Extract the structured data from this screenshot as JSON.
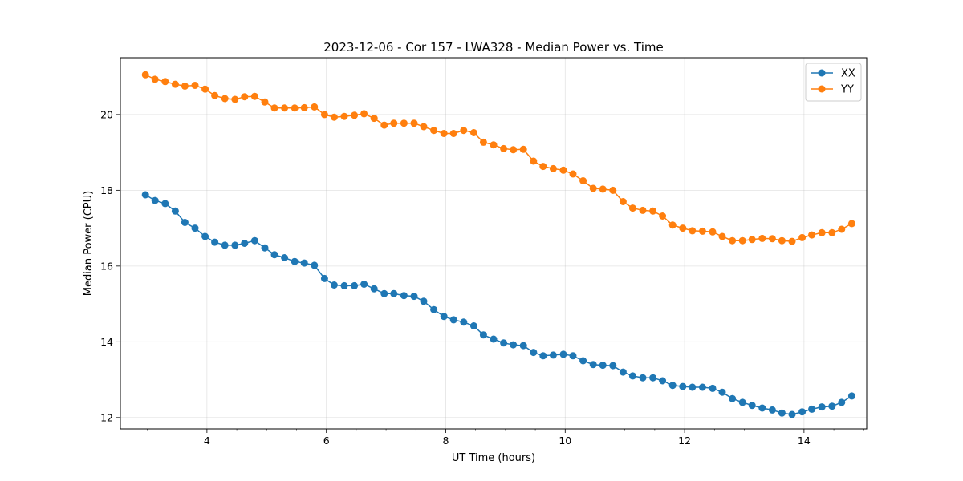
{
  "chart_data": {
    "type": "line",
    "title": "2023-12-06 - Cor 157 - LWA328 - Median Power vs. Time",
    "xlabel": "UT Time (hours)",
    "ylabel": "Median Power (CPU)",
    "xlim": [
      2.55,
      15.05
    ],
    "ylim": [
      11.7,
      21.5
    ],
    "xticks": [
      4,
      6,
      8,
      10,
      12,
      14
    ],
    "yticks": [
      12,
      14,
      16,
      18,
      20
    ],
    "grid": true,
    "legend_position": "top-right",
    "x": [
      2.97,
      3.13,
      3.3,
      3.47,
      3.63,
      3.8,
      3.97,
      4.13,
      4.3,
      4.47,
      4.63,
      4.8,
      4.97,
      5.13,
      5.3,
      5.47,
      5.63,
      5.8,
      5.97,
      6.13,
      6.3,
      6.47,
      6.63,
      6.8,
      6.97,
      7.13,
      7.3,
      7.47,
      7.63,
      7.8,
      7.97,
      8.13,
      8.3,
      8.47,
      8.63,
      8.8,
      8.97,
      9.13,
      9.3,
      9.47,
      9.63,
      9.8,
      9.97,
      10.13,
      10.3,
      10.47,
      10.63,
      10.8,
      10.97,
      11.13,
      11.3,
      11.47,
      11.63,
      11.8,
      11.97,
      12.13,
      12.3,
      12.47,
      12.63,
      12.8,
      12.97,
      13.13,
      13.3,
      13.47,
      13.63,
      13.8,
      13.97,
      14.13,
      14.3,
      14.47,
      14.63,
      14.8
    ],
    "series": [
      {
        "name": "XX",
        "color": "#1f77b4",
        "values": [
          17.88,
          17.73,
          17.65,
          17.45,
          17.15,
          17.0,
          16.78,
          16.63,
          16.55,
          16.55,
          16.6,
          16.67,
          16.48,
          16.3,
          16.22,
          16.12,
          16.08,
          16.02,
          15.67,
          15.5,
          15.48,
          15.48,
          15.52,
          15.4,
          15.27,
          15.27,
          15.22,
          15.2,
          15.07,
          14.85,
          14.67,
          14.58,
          14.52,
          14.42,
          14.18,
          14.07,
          13.97,
          13.92,
          13.9,
          13.72,
          13.63,
          13.65,
          13.67,
          13.63,
          13.5,
          13.4,
          13.38,
          13.37,
          13.2,
          13.1,
          13.05,
          13.05,
          12.97,
          12.85,
          12.82,
          12.8,
          12.8,
          12.77,
          12.67,
          12.5,
          12.4,
          12.32,
          12.25,
          12.2,
          12.12,
          12.08,
          12.15,
          12.22,
          12.28,
          12.3,
          12.4,
          12.57
        ]
      },
      {
        "name": "YY",
        "color": "#ff7f0e",
        "values": [
          21.05,
          20.93,
          20.87,
          20.8,
          20.75,
          20.77,
          20.67,
          20.5,
          20.42,
          20.4,
          20.47,
          20.48,
          20.33,
          20.17,
          20.17,
          20.17,
          20.18,
          20.2,
          20.0,
          19.93,
          19.95,
          19.98,
          20.02,
          19.9,
          19.72,
          19.77,
          19.77,
          19.77,
          19.68,
          19.58,
          19.5,
          19.5,
          19.58,
          19.52,
          19.27,
          19.2,
          19.1,
          19.07,
          19.08,
          18.77,
          18.63,
          18.57,
          18.53,
          18.43,
          18.25,
          18.05,
          18.03,
          18.0,
          17.7,
          17.53,
          17.47,
          17.45,
          17.32,
          17.08,
          17.0,
          16.93,
          16.92,
          16.9,
          16.78,
          16.67,
          16.67,
          16.7,
          16.73,
          16.72,
          16.67,
          16.65,
          16.75,
          16.82,
          16.88,
          16.88,
          16.97,
          17.12
        ]
      }
    ]
  }
}
